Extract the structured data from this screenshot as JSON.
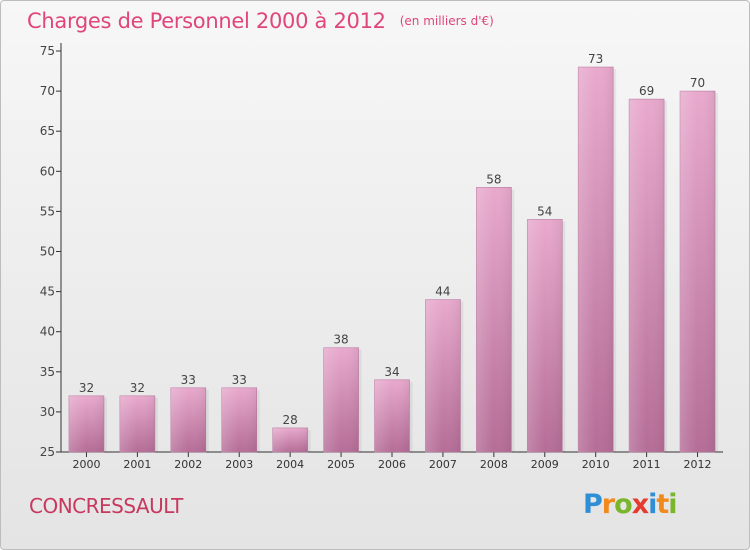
{
  "header": {
    "title": "Charges de Personnel 2000 à 2012",
    "unit": "(en milliers d'€)"
  },
  "footer": {
    "commune": "CONCRESSAULT",
    "brand": "Proxiti"
  },
  "colors": {
    "title": "#e0457b",
    "bar_top": "#e8a9cd",
    "bar_bottom": "#b56d97",
    "commune": "#c8385f"
  },
  "chart_data": {
    "type": "bar",
    "categories": [
      "2000",
      "2001",
      "2002",
      "2003",
      "2004",
      "2005",
      "2006",
      "2007",
      "2008",
      "2009",
      "2010",
      "2011",
      "2012"
    ],
    "values": [
      32,
      32,
      33,
      33,
      28,
      38,
      34,
      44,
      58,
      54,
      73,
      69,
      70
    ],
    "title": "Charges de Personnel 2000 à 2012",
    "subtitle": "(en milliers d'€)",
    "ylim": [
      25,
      75
    ],
    "yticks": [
      25,
      30,
      35,
      40,
      45,
      50,
      55,
      60,
      65,
      70,
      75
    ],
    "grid": false,
    "legend": "none"
  }
}
